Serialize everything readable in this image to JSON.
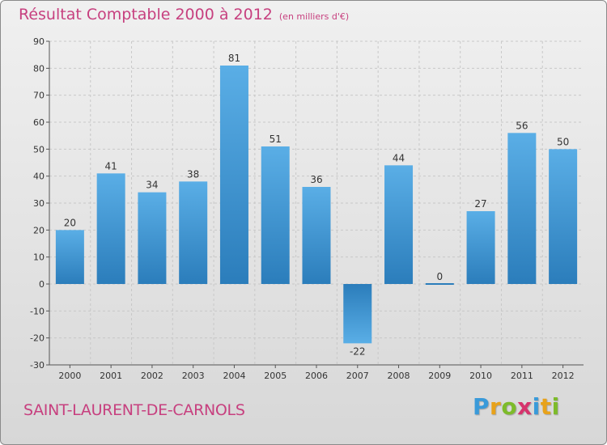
{
  "chart_data": {
    "type": "bar",
    "title": "Résultat Comptable 2000 à 2012",
    "subtitle": "(en milliers d'€)",
    "categories": [
      "2000",
      "2001",
      "2002",
      "2003",
      "2004",
      "2005",
      "2006",
      "2007",
      "2008",
      "2009",
      "2010",
      "2011",
      "2012"
    ],
    "values": [
      20,
      41,
      34,
      38,
      81,
      51,
      36,
      -22,
      44,
      0,
      27,
      56,
      50
    ],
    "ylim": [
      -30,
      90
    ],
    "yticks": [
      -30,
      -20,
      -10,
      0,
      10,
      20,
      30,
      40,
      50,
      60,
      70,
      80,
      90
    ],
    "xlabel": "",
    "ylabel": "",
    "grid": true
  },
  "footer": {
    "town": "SAINT-LAURENT-DE-CARNOLS",
    "brand": "Proxiti"
  },
  "colors": {
    "accent": "#c7407f",
    "bar_dark": "#2b7dbb",
    "bar_light": "#5aaee6",
    "logo_p": "#3a9ad9",
    "logo_r": "#e8a21a",
    "logo_o": "#7dbb2a",
    "logo_x": "#d6336c",
    "logo_i": "#3a9ad9",
    "logo_t": "#e8a21a",
    "logo_i2": "#7dbb2a"
  }
}
